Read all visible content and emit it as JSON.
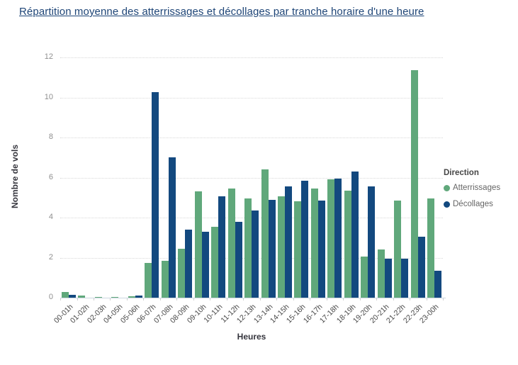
{
  "title": "Répartition moyenne des atterrissages et décollages par tranche horaire d'une heure",
  "colors": {
    "atterrissages": "#60a87b",
    "decollages": "#13497f",
    "title_text": "#1e4577",
    "gridline": "#d8d8d8",
    "baseline": "#ccd6e0"
  },
  "legend": {
    "title": "Direction",
    "items": [
      {
        "label": "Atterrissages",
        "color": "#60a87b"
      },
      {
        "label": "Décollages",
        "color": "#13497f"
      }
    ]
  },
  "chart_data": {
    "type": "bar",
    "title": "Répartition moyenne des atterrissages et décollages par tranche horaire d'une heure",
    "xlabel": "Heures",
    "ylabel": "Nombre de vols",
    "ylim": [
      0,
      12
    ],
    "yticks": [
      0,
      2,
      4,
      6,
      8,
      10,
      12
    ],
    "grid": "horizontal-dotted",
    "legend_position": "right",
    "categories": [
      "00-01h",
      "01-02h",
      "02-03h",
      "04-05h",
      "05-06h",
      "06-07h",
      "07-08h",
      "08-09h",
      "09-10h",
      "10-11h",
      "11-12h",
      "12-13h",
      "13-14h",
      "14-15h",
      "15-16h",
      "16-17h",
      "17-18h",
      "18-19h",
      "19-20h",
      "20-21h",
      "21-22h",
      "22-23h",
      "23-00h"
    ],
    "series": [
      {
        "name": "Atterrissages",
        "color": "#60a87b",
        "values": [
          0.3,
          0.1,
          0.05,
          0.05,
          0.07,
          1.75,
          1.85,
          2.45,
          5.3,
          3.55,
          5.45,
          4.95,
          6.4,
          5.05,
          4.8,
          5.45,
          5.9,
          5.35,
          2.05,
          2.4,
          4.85,
          11.35,
          4.95
        ]
      },
      {
        "name": "Décollages",
        "color": "#13497f",
        "values": [
          0.15,
          0,
          0,
          0,
          0.1,
          10.25,
          7.0,
          3.4,
          3.3,
          5.05,
          3.8,
          4.35,
          4.9,
          5.55,
          5.85,
          4.85,
          5.95,
          6.3,
          5.55,
          1.95,
          1.95,
          3.05,
          1.35
        ]
      }
    ]
  }
}
